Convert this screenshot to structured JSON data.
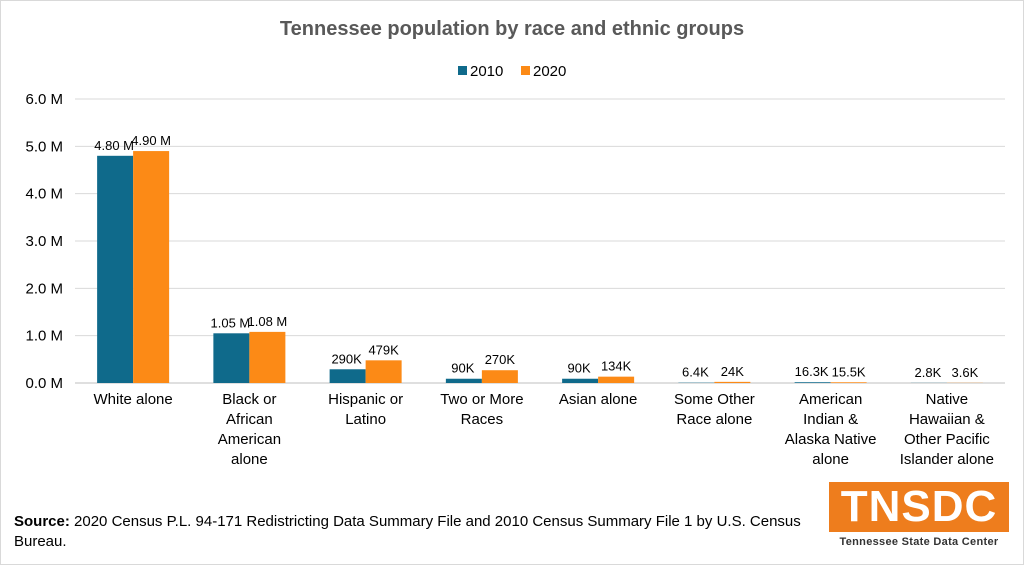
{
  "chart_data": {
    "type": "bar",
    "title": "Tennessee population by race and ethnic groups",
    "xlabel": "",
    "ylabel": "",
    "ylim": [
      0,
      6000000
    ],
    "y_ticks": [
      "0.0 M",
      "1.0 M",
      "2.0 M",
      "3.0 M",
      "4.0 M",
      "5.0 M",
      "6.0 M"
    ],
    "grid": true,
    "legend_position": "top",
    "categories": [
      [
        "White alone"
      ],
      [
        "Black or",
        "African",
        "American",
        "alone"
      ],
      [
        "Hispanic or",
        "Latino"
      ],
      [
        "Two or More",
        "Races"
      ],
      [
        "Asian alone"
      ],
      [
        "Some Other",
        "Race alone"
      ],
      [
        "American",
        "Indian &",
        "Alaska Native",
        "alone"
      ],
      [
        "Native",
        "Hawaiian &",
        "Other Pacific",
        "Islander alone"
      ]
    ],
    "series": [
      {
        "name": "2010",
        "color": "#0f6a8b",
        "values": [
          4800000,
          1050000,
          290000,
          90000,
          90000,
          6400,
          16300,
          2800
        ],
        "labels": [
          "4.80 M",
          "1.05 M",
          "290K",
          "90K",
          "90K",
          "6.4K",
          "16.3K",
          "2.8K"
        ]
      },
      {
        "name": "2020",
        "color": "#fc8a16",
        "values": [
          4900000,
          1080000,
          479000,
          270000,
          134000,
          24000,
          15500,
          3600
        ],
        "labels": [
          "4.90 M",
          "1.08 M",
          "479K",
          "270K",
          "134K",
          "24K",
          "15.5K",
          "3.6K"
        ]
      }
    ]
  },
  "source": {
    "label": "Source:",
    "text": "2020 Census P.L. 94-171 Redistricting Data Summary File and 2010 Census Summary File 1 by U.S. Census Bureau."
  },
  "logo": {
    "mark": "TNSDC",
    "subtitle": "Tennessee State Data Center"
  }
}
